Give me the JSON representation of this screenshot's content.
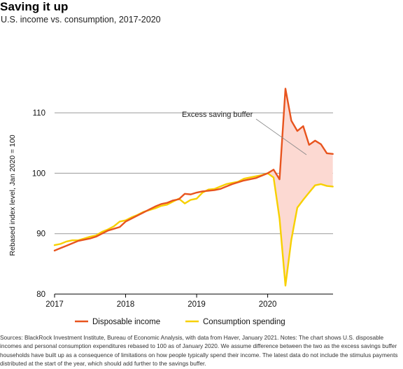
{
  "header": {
    "title": "Saving it up",
    "subtitle": "U.S. income vs. consumption, 2017-2020"
  },
  "chart_data": {
    "type": "line",
    "title": "Saving it up",
    "subtitle": "U.S. income vs. consumption, 2017-2020",
    "ylabel": "Rebased index level, Jan 2020 = 100",
    "xlabel": "",
    "ylim": [
      80,
      115
    ],
    "yticks": [
      80,
      90,
      100,
      110
    ],
    "xlim": [
      2017,
      2020.92
    ],
    "xticks": [
      "2017",
      "2018",
      "2019",
      "2020"
    ],
    "grid": "horizontal",
    "legend_position": "bottom",
    "annotation": "Excess saving buffer",
    "colors": {
      "income": "#e8541e",
      "spending": "#f7d000",
      "buffer": "#fcd9d2"
    },
    "x": [
      2017,
      2017.083,
      2017.167,
      2017.25,
      2017.333,
      2017.417,
      2017.5,
      2017.583,
      2017.667,
      2017.75,
      2017.833,
      2017.917,
      2018,
      2018.083,
      2018.167,
      2018.25,
      2018.333,
      2018.417,
      2018.5,
      2018.583,
      2018.667,
      2018.75,
      2018.833,
      2018.917,
      2019,
      2019.083,
      2019.167,
      2019.25,
      2019.333,
      2019.417,
      2019.5,
      2019.583,
      2019.667,
      2019.75,
      2019.833,
      2019.917,
      2020,
      2020.083,
      2020.167,
      2020.25,
      2020.333,
      2020.417,
      2020.5,
      2020.583,
      2020.667,
      2020.75,
      2020.833,
      2020.917
    ],
    "series": [
      {
        "name": "Disposable income",
        "values": [
          87.2,
          87.6,
          88.0,
          88.4,
          88.8,
          89.0,
          89.2,
          89.5,
          90.0,
          90.5,
          90.8,
          91.1,
          92.0,
          92.5,
          93.0,
          93.5,
          94.0,
          94.5,
          94.9,
          95.1,
          95.5,
          95.7,
          96.6,
          96.5,
          96.8,
          97.0,
          97.1,
          97.2,
          97.4,
          97.8,
          98.2,
          98.5,
          98.8,
          99.0,
          99.2,
          99.6,
          100.0,
          100.6,
          99.0,
          114.0,
          108.7,
          107.0,
          107.8,
          104.7,
          105.4,
          104.8,
          103.3,
          103.2
        ]
      },
      {
        "name": "Consumption spending",
        "values": [
          88.1,
          88.3,
          88.7,
          88.9,
          88.9,
          89.2,
          89.5,
          89.7,
          90.3,
          90.7,
          91.2,
          92.0,
          92.2,
          92.7,
          93.1,
          93.6,
          93.9,
          94.2,
          94.6,
          94.8,
          95.3,
          95.8,
          95.0,
          95.6,
          95.8,
          96.8,
          97.3,
          97.4,
          97.8,
          98.2,
          98.4,
          98.6,
          99.1,
          99.3,
          99.5,
          99.7,
          100.0,
          99.3,
          92.5,
          81.4,
          89.0,
          94.3,
          95.6,
          96.8,
          98.0,
          98.2,
          97.9,
          97.8
        ]
      }
    ]
  },
  "legend": {
    "items": [
      {
        "label": "Disposable income",
        "color": "#e8541e"
      },
      {
        "label": "Consumption spending",
        "color": "#f7d000"
      }
    ]
  },
  "footer": {
    "source": "Sources: BlackRock Investment Institute, Bureau of Economic Analysis, with data from Haver, January 2021. Notes: The chart shows U.S. disposable incomes and personal consumption expenditures rebased to 100 as of January 2020. We assume difference between the two as the excess savings buffer households have built up as a consequence of limitations on how people typically spend their income. The latest data do not include the stimulus payments distributed at the start of the year, which should add further to the savings buffer."
  }
}
